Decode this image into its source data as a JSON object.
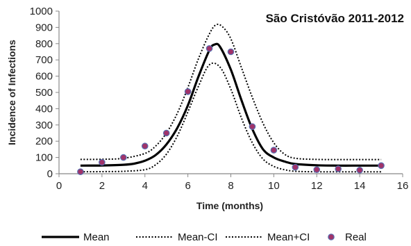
{
  "chart_data": {
    "type": "line",
    "title": "São Cristóvão 2011-2012",
    "xlabel": "Time (months)",
    "ylabel": "Incidence of Infections",
    "xlim": [
      0,
      16
    ],
    "ylim": [
      0,
      1000
    ],
    "xticks": [
      0,
      2,
      4,
      6,
      8,
      10,
      12,
      14,
      16
    ],
    "yticks": [
      0,
      100,
      200,
      300,
      400,
      500,
      600,
      700,
      800,
      900,
      1000
    ],
    "grid": false,
    "legend_position": "bottom",
    "series": [
      {
        "name": "Mean",
        "style": "solid",
        "color": "#000000",
        "x": [
          1,
          2,
          3,
          3.5,
          4,
          4.5,
          5,
          5.5,
          6,
          6.5,
          7,
          7.25,
          7.5,
          8,
          8.5,
          9,
          9.5,
          10,
          10.5,
          11,
          12,
          13,
          14,
          15
        ],
        "y": [
          50,
          51,
          55,
          62,
          80,
          115,
          180,
          280,
          420,
          600,
          760,
          795,
          780,
          640,
          450,
          275,
          150,
          100,
          75,
          60,
          52,
          50,
          50,
          50
        ]
      },
      {
        "name": "Mean-CI",
        "style": "dotted",
        "color": "#000000",
        "x": [
          1,
          2,
          3,
          4,
          4.5,
          5,
          5.5,
          6,
          6.5,
          7,
          7.5,
          8,
          8.5,
          9,
          9.5,
          10,
          10.5,
          11,
          12,
          13,
          14,
          15
        ],
        "y": [
          12,
          13,
          15,
          25,
          55,
          120,
          230,
          380,
          540,
          670,
          655,
          520,
          340,
          190,
          90,
          45,
          25,
          15,
          12,
          12,
          12,
          12
        ]
      },
      {
        "name": "Mean+CI",
        "style": "dotted",
        "color": "#000000",
        "x": [
          1,
          2,
          3,
          4,
          4.5,
          5,
          5.5,
          6,
          6.5,
          7,
          7.3,
          7.6,
          8,
          8.5,
          9,
          9.5,
          10,
          10.5,
          11,
          12,
          13,
          14,
          15
        ],
        "y": [
          88,
          89,
          95,
          125,
          170,
          250,
          370,
          530,
          710,
          860,
          915,
          905,
          830,
          650,
          470,
          310,
          190,
          120,
          95,
          88,
          87,
          87,
          87
        ]
      },
      {
        "name": "Real",
        "style": "markers",
        "color": "#a0336a",
        "x": [
          1,
          2,
          3,
          4,
          5,
          6,
          7,
          8,
          9,
          10,
          11,
          12,
          13,
          14,
          15
        ],
        "y": [
          12,
          70,
          100,
          170,
          250,
          505,
          770,
          750,
          290,
          145,
          40,
          25,
          30,
          22,
          50
        ]
      }
    ]
  }
}
